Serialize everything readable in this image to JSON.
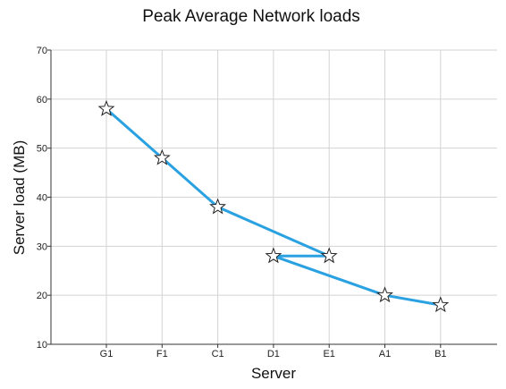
{
  "chart_data": {
    "type": "line",
    "title": "Peak Average Network loads",
    "xlabel": "Server",
    "ylabel": "Server load (MB)",
    "categories": [
      "G1",
      "F1",
      "C1",
      "D1",
      "E1",
      "A1",
      "B1"
    ],
    "ylim": [
      10,
      70
    ],
    "yticks": [
      10,
      20,
      30,
      40,
      50,
      60,
      70
    ],
    "grid": true,
    "legend": "none",
    "marker": "star",
    "series": [
      {
        "color": "#2aa1e0",
        "points": [
          {
            "x": "G1",
            "y": 58
          },
          {
            "x": "F1",
            "y": 48
          },
          {
            "x": "C1",
            "y": 38
          },
          {
            "x": "E1",
            "y": 28
          },
          {
            "x": "D1",
            "y": 28
          },
          {
            "x": "A1",
            "y": 20
          },
          {
            "x": "B1",
            "y": 18
          }
        ]
      }
    ]
  }
}
